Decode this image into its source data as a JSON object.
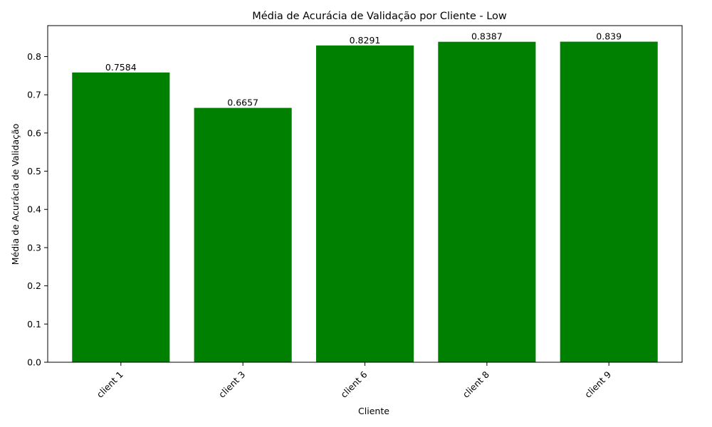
{
  "chart_data": {
    "type": "bar",
    "title": "Média de Acurácia de Validação por Cliente - Low",
    "xlabel": "Cliente",
    "ylabel": "Média de Acurácia de Validação",
    "categories": [
      "client 1",
      "client 3",
      "client 6",
      "client 8",
      "client 9"
    ],
    "values": [
      0.7584,
      0.6657,
      0.8291,
      0.8387,
      0.839
    ],
    "value_labels": [
      "0.7584",
      "0.6657",
      "0.8291",
      "0.8387",
      "0.839"
    ],
    "ylim": [
      0,
      0.881
    ],
    "yticks": [
      0.0,
      0.1,
      0.2,
      0.3,
      0.4,
      0.5,
      0.6,
      0.7,
      0.8
    ],
    "ytick_labels": [
      "0.0",
      "0.1",
      "0.2",
      "0.3",
      "0.4",
      "0.5",
      "0.6",
      "0.7",
      "0.8"
    ],
    "bar_color": "#008000",
    "grid": false,
    "legend": "none"
  }
}
